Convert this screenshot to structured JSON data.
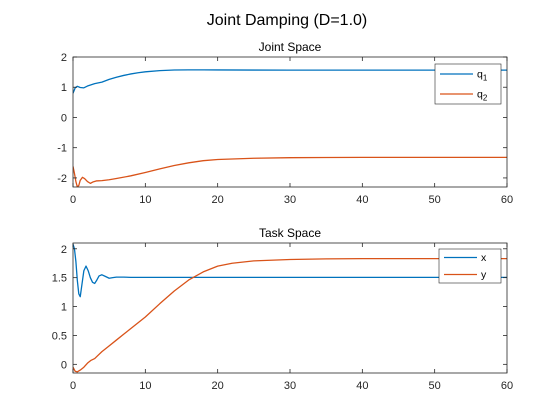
{
  "figure": {
    "title": "Joint Damping (D=1.0)"
  },
  "colors": {
    "series1": "#0072BD",
    "series2": "#D95319",
    "axis": "#262626",
    "background": "#ffffff"
  },
  "chart_data": [
    {
      "type": "line",
      "title": "Joint Space",
      "xlabel": "",
      "ylabel": "",
      "xlim": [
        0,
        60
      ],
      "ylim": [
        -2.3,
        2
      ],
      "xticks": [
        0,
        10,
        20,
        30,
        40,
        50,
        60
      ],
      "yticks": [
        -2,
        -1,
        0,
        1,
        2
      ],
      "grid": false,
      "legend_position": "top-right",
      "series": [
        {
          "name": "q",
          "name_subscript": "1",
          "color": "#0072BD",
          "x": [
            0,
            0.3,
            0.6,
            1,
            1.5,
            2,
            3,
            4,
            5,
            6,
            7,
            8,
            9,
            10,
            12,
            14,
            16,
            18,
            20,
            25,
            30,
            40,
            50,
            60
          ],
          "y": [
            0.8,
            0.98,
            1.03,
            0.99,
            0.98,
            1.04,
            1.12,
            1.17,
            1.26,
            1.33,
            1.39,
            1.44,
            1.48,
            1.51,
            1.55,
            1.57,
            1.575,
            1.575,
            1.572,
            1.568,
            1.567,
            1.567,
            1.567,
            1.567
          ]
        },
        {
          "name": "q",
          "name_subscript": "2",
          "color": "#D95319",
          "x": [
            0,
            0.2,
            0.4,
            0.6,
            0.8,
            1.0,
            1.3,
            1.6,
            2.0,
            2.4,
            2.8,
            3.2,
            4,
            5,
            6,
            8,
            10,
            12,
            14,
            16,
            18,
            20,
            25,
            30,
            35,
            40,
            50,
            60
          ],
          "y": [
            -1.62,
            -1.85,
            -2.12,
            -2.3,
            -2.25,
            -2.08,
            -1.98,
            -2.02,
            -2.12,
            -2.18,
            -2.13,
            -2.1,
            -2.09,
            -2.06,
            -2.02,
            -1.93,
            -1.82,
            -1.7,
            -1.59,
            -1.5,
            -1.43,
            -1.39,
            -1.35,
            -1.33,
            -1.325,
            -1.32,
            -1.32,
            -1.32
          ]
        }
      ]
    },
    {
      "type": "line",
      "title": "Task Space",
      "xlabel": "",
      "ylabel": "",
      "xlim": [
        0,
        60
      ],
      "ylim": [
        -0.15,
        2.1
      ],
      "xticks": [
        0,
        10,
        20,
        30,
        40,
        50,
        60
      ],
      "yticks": [
        0,
        0.5,
        1,
        1.5,
        2
      ],
      "grid": false,
      "legend_position": "top-right",
      "series": [
        {
          "name": "x",
          "name_subscript": "",
          "color": "#0072BD",
          "x": [
            0,
            0.2,
            0.4,
            0.6,
            0.8,
            1.0,
            1.2,
            1.5,
            1.8,
            2.1,
            2.4,
            2.7,
            3.0,
            3.3,
            3.6,
            4.0,
            4.5,
            5.0,
            5.5,
            6.0,
            7,
            8,
            10,
            15,
            20,
            30,
            40,
            50,
            60
          ],
          "y": [
            2.08,
            2.0,
            1.78,
            1.45,
            1.22,
            1.17,
            1.35,
            1.62,
            1.7,
            1.62,
            1.5,
            1.42,
            1.4,
            1.46,
            1.53,
            1.55,
            1.52,
            1.49,
            1.5,
            1.51,
            1.51,
            1.505,
            1.505,
            1.505,
            1.505,
            1.505,
            1.505,
            1.505,
            1.505
          ]
        },
        {
          "name": "y",
          "name_subscript": "",
          "color": "#D95319",
          "x": [
            0,
            0.3,
            0.6,
            1.0,
            1.5,
            2.0,
            2.5,
            3.0,
            3.5,
            4,
            5,
            6,
            7,
            8,
            10,
            12,
            14,
            16,
            18,
            20,
            22,
            25,
            30,
            35,
            40,
            50,
            60
          ],
          "y": [
            -0.05,
            -0.12,
            -0.13,
            -0.1,
            -0.05,
            0.02,
            0.07,
            0.1,
            0.16,
            0.22,
            0.32,
            0.42,
            0.52,
            0.62,
            0.82,
            1.05,
            1.27,
            1.46,
            1.6,
            1.7,
            1.75,
            1.79,
            1.815,
            1.825,
            1.83,
            1.83,
            1.83
          ]
        }
      ]
    }
  ]
}
